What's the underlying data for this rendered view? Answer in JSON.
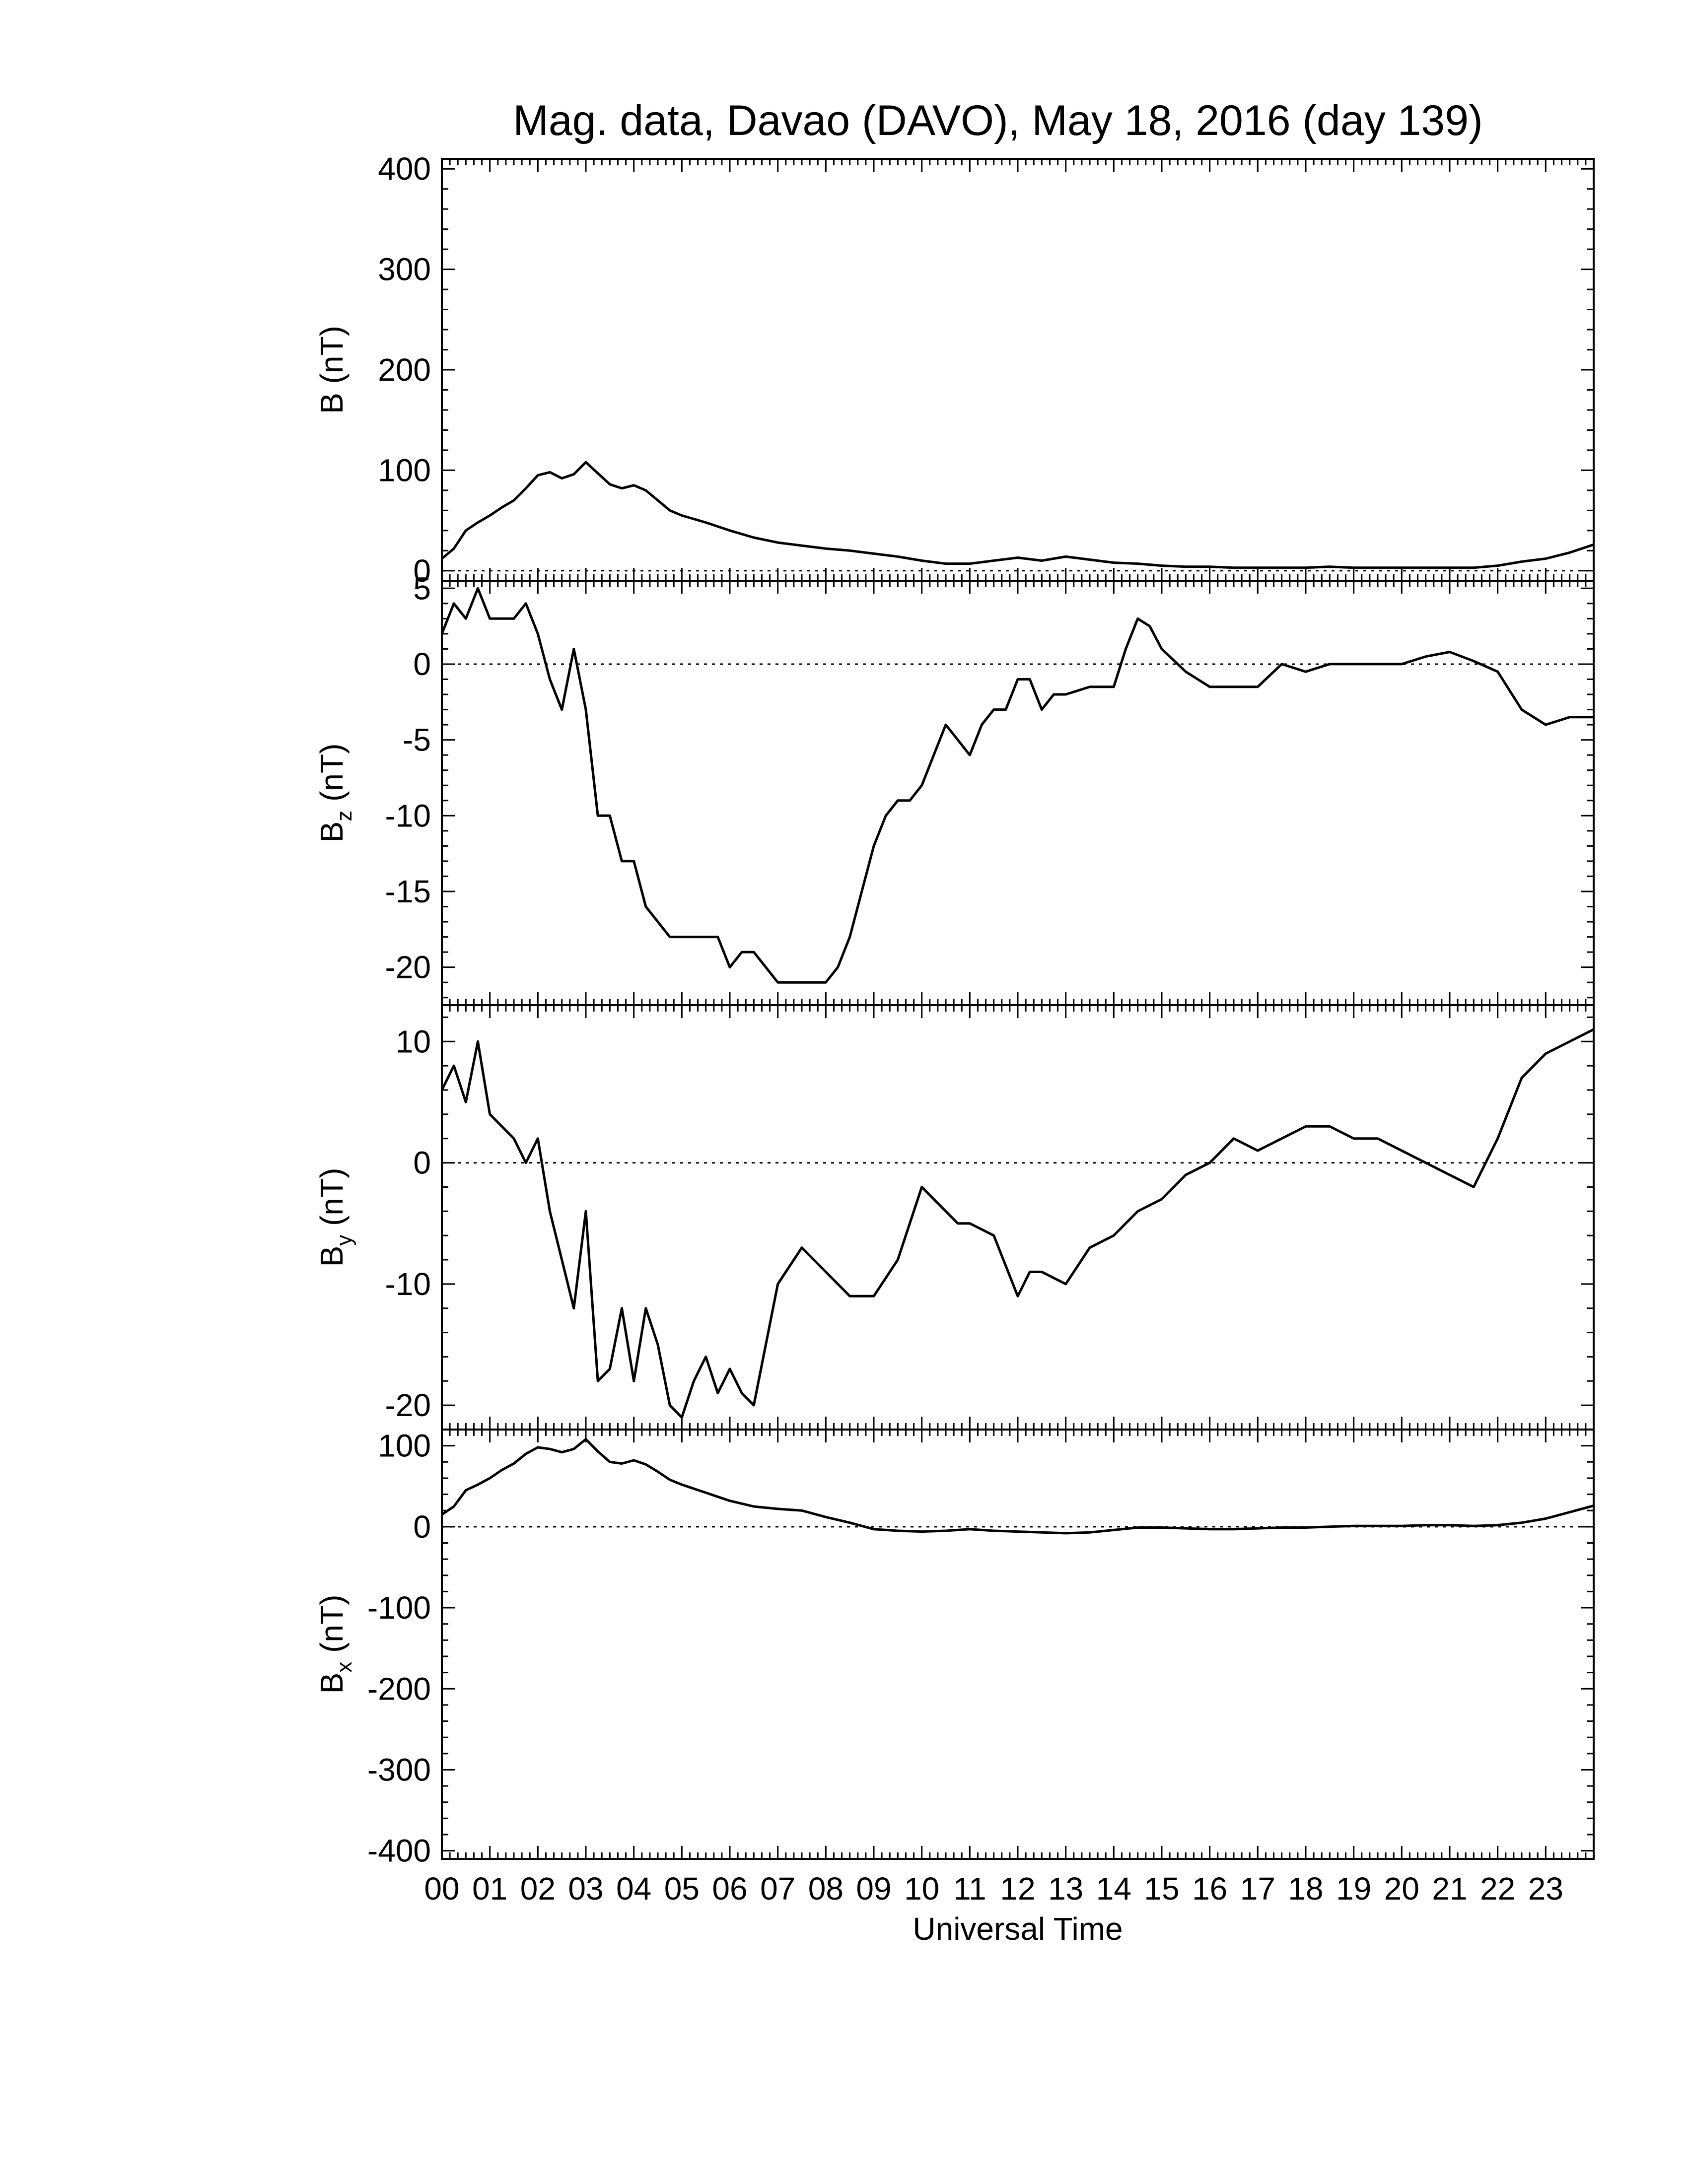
{
  "chart_data": {
    "type": "line",
    "title": "Mag. data, Davao (DAVO), May 18, 2016 (day 139)",
    "xlabel": "Universal Time",
    "x_tick_labels": [
      "00",
      "01",
      "02",
      "03",
      "04",
      "05",
      "06",
      "07",
      "08",
      "09",
      "10",
      "11",
      "12",
      "13",
      "14",
      "15",
      "16",
      "17",
      "18",
      "19",
      "20",
      "21",
      "22",
      "23"
    ],
    "xlim": [
      0,
      24
    ],
    "grid": false,
    "panels": [
      {
        "id": "B",
        "ylabel_main": "B",
        "ylabel_sub": "",
        "ylabel_unit": "(nT)",
        "ylim": [
          -10,
          410
        ],
        "yticks": [
          0,
          100,
          200,
          300,
          400
        ],
        "zero_line": true,
        "x": [
          0,
          0.25,
          0.5,
          0.75,
          1,
          1.25,
          1.5,
          1.75,
          2,
          2.25,
          2.5,
          2.75,
          3,
          3.25,
          3.5,
          3.75,
          4,
          4.25,
          4.5,
          4.75,
          5,
          5.5,
          6,
          6.5,
          7,
          7.5,
          8,
          8.5,
          9,
          9.5,
          10,
          10.5,
          11,
          11.5,
          12,
          12.5,
          13,
          13.5,
          14,
          14.5,
          15,
          15.5,
          16,
          16.5,
          17,
          17.5,
          18,
          18.5,
          19,
          19.5,
          20,
          20.5,
          21,
          21.5,
          22,
          22.5,
          23,
          23.5,
          24
        ],
        "values": [
          12,
          22,
          40,
          48,
          55,
          63,
          70,
          82,
          95,
          98,
          92,
          96,
          108,
          97,
          86,
          82,
          85,
          80,
          70,
          60,
          55,
          48,
          40,
          33,
          28,
          25,
          22,
          20,
          17,
          14,
          10,
          7,
          7,
          10,
          13,
          10,
          14,
          11,
          8,
          7,
          5,
          4,
          4,
          3,
          3,
          3,
          3,
          4,
          3,
          3,
          3,
          3,
          3,
          3,
          5,
          9,
          12,
          18,
          26
        ]
      },
      {
        "id": "Bz",
        "ylabel_main": "B",
        "ylabel_sub": "z",
        "ylabel_unit": "(nT)",
        "ylim": [
          -22.5,
          5.5
        ],
        "yticks": [
          5,
          0,
          -5,
          -10,
          -15,
          -20
        ],
        "zero_line": true,
        "x": [
          0,
          0.25,
          0.5,
          0.75,
          1,
          1.25,
          1.5,
          1.75,
          2,
          2.25,
          2.5,
          2.75,
          3,
          3.25,
          3.5,
          3.75,
          4,
          4.25,
          4.5,
          4.75,
          5,
          5.25,
          5.5,
          5.75,
          6,
          6.25,
          6.5,
          6.75,
          7,
          7.25,
          7.5,
          7.75,
          8,
          8.25,
          8.5,
          8.75,
          9,
          9.25,
          9.5,
          9.75,
          10,
          10.25,
          10.5,
          10.75,
          11,
          11.25,
          11.5,
          11.75,
          12,
          12.25,
          12.5,
          12.75,
          13,
          13.5,
          14,
          14.25,
          14.5,
          14.75,
          15,
          15.5,
          16,
          16.5,
          17,
          17.5,
          18,
          18.5,
          19,
          19.5,
          20,
          20.5,
          21,
          21.5,
          22,
          22.5,
          23,
          23.5,
          24
        ],
        "values": [
          2,
          4,
          3,
          5,
          3,
          3,
          3,
          4,
          2,
          -1,
          -3,
          1,
          -3,
          -10,
          -10,
          -13,
          -13,
          -16,
          -17,
          -18,
          -18,
          -18,
          -18,
          -18,
          -20,
          -19,
          -19,
          -20,
          -21,
          -21,
          -21,
          -21,
          -21,
          -20,
          -18,
          -15,
          -12,
          -10,
          -9,
          -9,
          -8,
          -6,
          -4,
          -5,
          -6,
          -4,
          -3,
          -3,
          -1,
          -1,
          -3,
          -2,
          -2,
          -1.5,
          -1.5,
          1,
          3,
          2.5,
          1,
          -0.5,
          -1.5,
          -1.5,
          -1.5,
          0,
          -0.5,
          0,
          0,
          0,
          0,
          0.5,
          0.8,
          0.2,
          -0.5,
          -3,
          -4,
          -3.5,
          -3.5
        ]
      },
      {
        "id": "By",
        "ylabel_main": "B",
        "ylabel_sub": "y",
        "ylabel_unit": "(nT)",
        "ylim": [
          -22,
          13
        ],
        "yticks": [
          10,
          0,
          -10,
          -20
        ],
        "zero_line": true,
        "x": [
          0,
          0.25,
          0.5,
          0.75,
          1,
          1.25,
          1.5,
          1.75,
          2,
          2.25,
          2.5,
          2.75,
          3,
          3.25,
          3.5,
          3.75,
          4,
          4.25,
          4.5,
          4.75,
          5,
          5.25,
          5.5,
          5.75,
          6,
          6.25,
          6.5,
          6.75,
          7,
          7.5,
          8,
          8.5,
          9,
          9.5,
          10,
          10.25,
          10.5,
          10.75,
          11,
          11.5,
          12,
          12.25,
          12.5,
          13,
          13.5,
          14,
          14.5,
          15,
          15.5,
          16,
          16.5,
          17,
          17.5,
          18,
          18.5,
          19,
          19.5,
          20,
          20.5,
          21,
          21.5,
          22,
          22.5,
          23,
          23.5,
          24
        ],
        "values": [
          6,
          8,
          5,
          10,
          4,
          3,
          2,
          0,
          2,
          -4,
          -8,
          -12,
          -4,
          -18,
          -17,
          -12,
          -18,
          -12,
          -15,
          -20,
          -21,
          -18,
          -16,
          -19,
          -17,
          -19,
          -20,
          -15,
          -10,
          -7,
          -9,
          -11,
          -11,
          -8,
          -2,
          -3,
          -4,
          -5,
          -5,
          -6,
          -11,
          -9,
          -9,
          -10,
          -7,
          -6,
          -4,
          -3,
          -1,
          0,
          2,
          1,
          2,
          3,
          3,
          2,
          2,
          1,
          0,
          -1,
          -2,
          2,
          7,
          9,
          10,
          11
        ]
      },
      {
        "id": "Bx",
        "ylabel_main": "B",
        "ylabel_sub": "x",
        "ylabel_unit": "(nT)",
        "ylim": [
          -410,
          120
        ],
        "yticks": [
          100,
          0,
          -100,
          -200,
          -300,
          -400
        ],
        "zero_line": true,
        "x": [
          0,
          0.25,
          0.5,
          0.75,
          1,
          1.25,
          1.5,
          1.75,
          2,
          2.25,
          2.5,
          2.75,
          3,
          3.25,
          3.5,
          3.75,
          4,
          4.25,
          4.5,
          4.75,
          5,
          5.5,
          6,
          6.5,
          7,
          7.5,
          8,
          8.5,
          9,
          9.5,
          10,
          10.5,
          11,
          11.5,
          12,
          12.5,
          13,
          13.5,
          14,
          14.5,
          15,
          15.5,
          16,
          16.5,
          17,
          17.5,
          18,
          18.5,
          19,
          19.5,
          20,
          20.5,
          21,
          21.5,
          22,
          22.5,
          23,
          23.5,
          24
        ],
        "values": [
          15,
          25,
          45,
          52,
          60,
          70,
          78,
          90,
          98,
          96,
          92,
          96,
          108,
          93,
          80,
          78,
          82,
          77,
          68,
          58,
          52,
          42,
          32,
          25,
          22,
          20,
          12,
          5,
          -3,
          -5,
          -6,
          -5,
          -3,
          -5,
          -6,
          -7,
          -8,
          -7,
          -4,
          -1,
          -1,
          -2,
          -3,
          -3,
          -2,
          -1,
          -1,
          0,
          1,
          1,
          1,
          2,
          2,
          1,
          2,
          5,
          10,
          18,
          26
        ]
      }
    ]
  }
}
